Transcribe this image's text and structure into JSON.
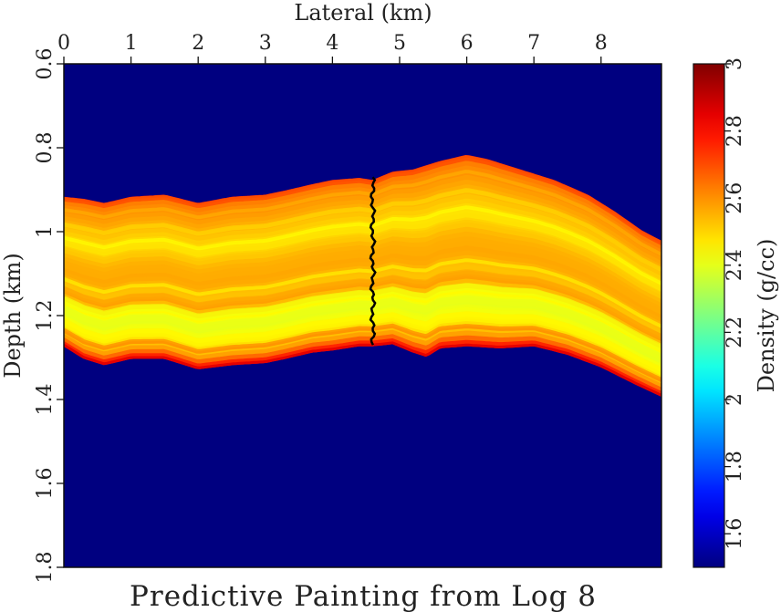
{
  "chart_data": {
    "type": "heatmap",
    "title": "Predictive Painting from Log 8",
    "xlabel": "Lateral (km)",
    "ylabel": "Depth (km)",
    "colorbar_label": "Density (g/cc)",
    "xlim": [
      0,
      8.9
    ],
    "ylim": [
      0.6,
      1.8
    ],
    "y_inverted": true,
    "x_ticks": [
      "0",
      "1",
      "2",
      "3",
      "4",
      "5",
      "6",
      "7",
      "8"
    ],
    "y_ticks": [
      "0.6",
      "0.8",
      "1",
      "1.2",
      "1.4",
      "1.6",
      "1.8"
    ],
    "colorbar_range": [
      1.5,
      3.0
    ],
    "colorbar_ticks": [
      "1.6",
      "1.8",
      "2",
      "2.2",
      "2.4",
      "2.6",
      "2.8",
      "3"
    ],
    "colormap": "jet",
    "background_density": 1.5,
    "layer_top": {
      "x": [
        0,
        0.3,
        0.6,
        1.0,
        1.5,
        2.0,
        2.5,
        3.0,
        3.3,
        3.7,
        4.0,
        4.4,
        4.6,
        4.9,
        5.2,
        5.6,
        6.0,
        6.3,
        6.8,
        7.3,
        7.8,
        8.2,
        8.6,
        8.9
      ],
      "depth": [
        0.92,
        0.925,
        0.935,
        0.92,
        0.915,
        0.935,
        0.92,
        0.915,
        0.905,
        0.89,
        0.88,
        0.875,
        0.88,
        0.86,
        0.855,
        0.835,
        0.82,
        0.83,
        0.855,
        0.88,
        0.915,
        0.955,
        1.0,
        1.025
      ]
    },
    "layer_base": {
      "x": [
        0,
        0.3,
        0.6,
        1.0,
        1.5,
        2.0,
        2.5,
        3.0,
        3.3,
        3.7,
        4.0,
        4.4,
        4.6,
        4.9,
        5.2,
        5.4,
        5.6,
        6.0,
        6.5,
        7.0,
        7.5,
        8.0,
        8.5,
        8.9
      ],
      "depth": [
        1.27,
        1.3,
        1.315,
        1.3,
        1.3,
        1.325,
        1.315,
        1.31,
        1.3,
        1.285,
        1.28,
        1.27,
        1.27,
        1.265,
        1.285,
        1.295,
        1.275,
        1.27,
        1.275,
        1.27,
        1.29,
        1.32,
        1.36,
        1.39
      ]
    },
    "well_log": {
      "name": "Log 8",
      "x": 4.6,
      "depth_top": 0.87,
      "depth_bottom": 1.27,
      "color": "#000000"
    }
  }
}
